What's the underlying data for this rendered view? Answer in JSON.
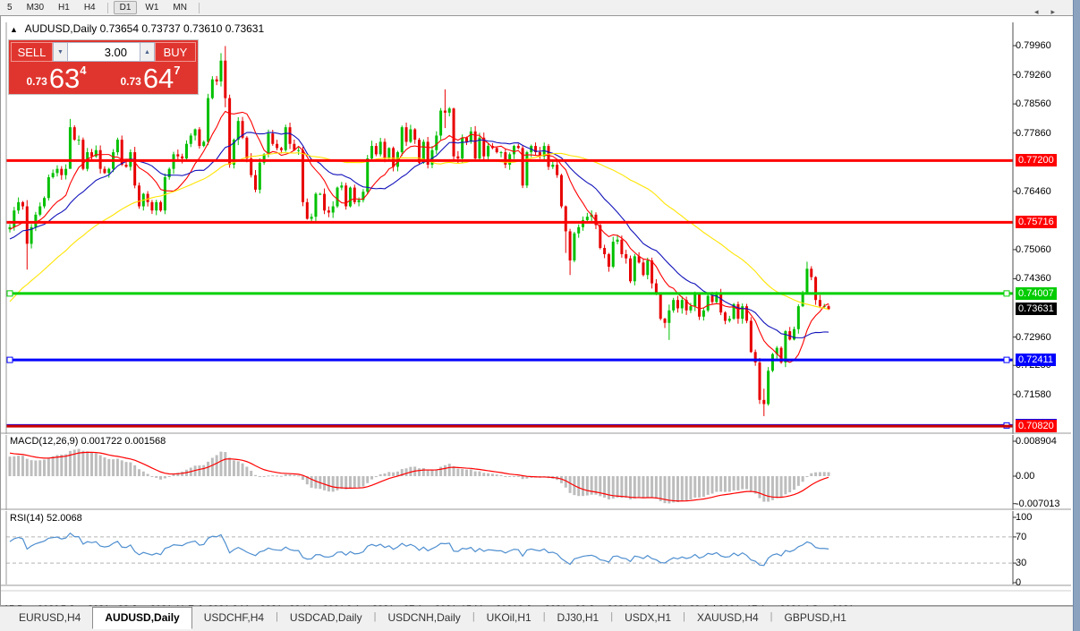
{
  "toolbar": {
    "timeframes": [
      {
        "label": "5",
        "active": false,
        "sep_after": false
      },
      {
        "label": "M30",
        "active": false,
        "sep_after": false
      },
      {
        "label": "H1",
        "active": false,
        "sep_after": false
      },
      {
        "label": "H4",
        "active": false,
        "sep_after": true
      },
      {
        "label": "D1",
        "active": true,
        "sep_after": false
      },
      {
        "label": "W1",
        "active": false,
        "sep_after": false
      },
      {
        "label": "MN",
        "active": false,
        "sep_after": true
      }
    ]
  },
  "chart_header": {
    "collapse_icon": "▲",
    "symbol_title": "AUDUSD,Daily",
    "ohlc_text": "0.73654 0.73737 0.73610 0.73631"
  },
  "trade_panel": {
    "sell_label": "SELL",
    "buy_label": "BUY",
    "volume": "3.00",
    "spinner_down": "▼",
    "spinner_up": "▲",
    "sell_price": {
      "prefix": "0.73",
      "big": "63",
      "sup": "4"
    },
    "buy_price": {
      "prefix": "0.73",
      "big": "64",
      "sup": "7"
    }
  },
  "price_axis": {
    "labels": [
      {
        "text": "0.79960",
        "price": 0.7996,
        "type": "normal"
      },
      {
        "text": "0.79260",
        "price": 0.7926,
        "type": "normal"
      },
      {
        "text": "0.78560",
        "price": 0.7856,
        "type": "normal"
      },
      {
        "text": "0.77860",
        "price": 0.7786,
        "type": "normal"
      },
      {
        "text": "0.77200",
        "price": 0.772,
        "type": "red"
      },
      {
        "text": "0.76460",
        "price": 0.7646,
        "type": "normal"
      },
      {
        "text": "0.75716",
        "price": 0.75716,
        "type": "red"
      },
      {
        "text": "0.75060",
        "price": 0.7506,
        "type": "normal"
      },
      {
        "text": "0.74360",
        "price": 0.7436,
        "type": "normal"
      },
      {
        "text": "0.74007",
        "price": 0.74007,
        "type": "green"
      },
      {
        "text": "0.73631",
        "price": 0.73631,
        "type": "black"
      },
      {
        "text": "0.72960",
        "price": 0.7296,
        "type": "normal"
      },
      {
        "text": "0.72280",
        "price": 0.7228,
        "type": "normal"
      },
      {
        "text": "0.72411",
        "price": 0.72411,
        "type": "blue"
      },
      {
        "text": "0.71580",
        "price": 0.7158,
        "type": "normal"
      },
      {
        "text": "0.70836",
        "price": 0.70836,
        "type": "blue"
      },
      {
        "text": "0.70820",
        "price": 0.7082,
        "type": "red"
      }
    ]
  },
  "indicators": {
    "macd": {
      "header": "MACD(12,26,9) 0.001722 0.001568",
      "params": {
        "fast": 12,
        "slow": 26,
        "signal": 9
      },
      "values": {
        "main": 0.001722,
        "signal": 0.001568
      },
      "axis": [
        {
          "text": "0.008904",
          "v": 0.008904
        },
        {
          "text": "0.00",
          "v": 0
        },
        {
          "text": "-0.007013",
          "v": -0.007013
        }
      ]
    },
    "rsi": {
      "header": "RSI(14) 52.0068",
      "period": 14,
      "value": 52.0068,
      "axis": [
        {
          "text": "100",
          "v": 100
        },
        {
          "text": "70",
          "v": 70
        },
        {
          "text": "30",
          "v": 30
        },
        {
          "text": "0",
          "v": 0
        }
      ],
      "levels": [
        70,
        30
      ]
    }
  },
  "date_axis": {
    "labels": [
      "15 Dec 2020",
      "5 Jan 2021",
      "23 Jan 2021",
      "11 Feb 2021",
      "2 Mar 2021",
      "20 Mar 2021",
      "8 Apr 2021",
      "27 Apr 2021",
      "15 May 2021",
      "3 Jun 2021",
      "22 Jun 2021",
      "10 Jul 2021",
      "29 Jul 2021",
      "17 Aug 2021",
      "4 Sep 2021"
    ]
  },
  "tabs": {
    "items": [
      {
        "label": "EURUSD,H4",
        "active": false
      },
      {
        "label": "AUDUSD,Daily",
        "active": true
      },
      {
        "label": "USDCHF,H4",
        "active": false
      },
      {
        "label": "USDCAD,Daily",
        "active": false
      },
      {
        "label": "USDCNH,Daily",
        "active": false
      },
      {
        "label": "UKOil,H1",
        "active": false
      },
      {
        "label": "DJ30,H1",
        "active": false
      },
      {
        "label": "USDX,H1",
        "active": false
      },
      {
        "label": "XAUUSD,H4",
        "active": false
      },
      {
        "label": "GBPUSD,H1",
        "active": false
      }
    ],
    "nav_prev": "◂",
    "nav_next": "▸"
  },
  "chart_data": {
    "type": "candlestick",
    "symbol": "AUDUSD",
    "timeframe": "Daily",
    "current": {
      "open": 0.73654,
      "high": 0.73737,
      "low": 0.7361,
      "close": 0.73631
    },
    "warmup_count": 50,
    "noise_seed": 11,
    "closes_pips": [
      7030,
      7060,
      7045,
      7080,
      7120,
      7100,
      7150,
      7180,
      7160,
      7200,
      7230,
      7210,
      7260,
      7290,
      7270,
      7310,
      7340,
      7320,
      7290,
      7330,
      7360,
      7380,
      7360,
      7400,
      7430,
      7410,
      7380,
      7420,
      7450,
      7430,
      7470,
      7500,
      7480,
      7455,
      7490,
      7520,
      7500,
      7530,
      7560,
      7540,
      7510,
      7545,
      7570,
      7550,
      7530,
      7555,
      7575,
      7560,
      7545,
      7555,
      7560,
      7600,
      7620,
      7610,
      7520,
      7560,
      7590,
      7610,
      7630,
      7680,
      7690,
      7700,
      7685,
      7700,
      7800,
      7770,
      7770,
      7700,
      7740,
      7730,
      7745,
      7700,
      7690,
      7700,
      7740,
      7770,
      7710,
      7705,
      7740,
      7660,
      7610,
      7640,
      7620,
      7600,
      7620,
      7600,
      7680,
      7700,
      7735,
      7730,
      7725,
      7760,
      7780,
      7795,
      7755,
      7765,
      7870,
      7915,
      7910,
      7960,
      7870,
      7710,
      7770,
      7815,
      7775,
      7725,
      7685,
      7650,
      7715,
      7735,
      7785,
      7760,
      7750,
      7745,
      7800,
      7760,
      7745,
      7745,
      7620,
      7580,
      7585,
      7640,
      7640,
      7600,
      7595,
      7610,
      7655,
      7660,
      7610,
      7655,
      7620,
      7625,
      7645,
      7725,
      7755,
      7735,
      7765,
      7725,
      7750,
      7705,
      7740,
      7800,
      7765,
      7795,
      7770,
      7715,
      7765,
      7710,
      7745,
      7780,
      7840,
      7835,
      7845,
      7730,
      7725,
      7775,
      7765,
      7790,
      7725,
      7775,
      7730,
      7755,
      7750,
      7740,
      7740,
      7710,
      7735,
      7755,
      7750,
      7660,
      7740,
      7755,
      7740,
      7730,
      7755,
      7705,
      7710,
      7685,
      7610,
      7550,
      7480,
      7545,
      7560,
      7577,
      7585,
      7590,
      7565,
      7510,
      7495,
      7465,
      7525,
      7530,
      7495,
      7485,
      7430,
      7490,
      7475,
      7445,
      7480,
      7425,
      7400,
      7340,
      7330,
      7360,
      7385,
      7365,
      7385,
      7360,
      7370,
      7400,
      7345,
      7360,
      7395,
      7380,
      7400,
      7355,
      7335,
      7340,
      7375,
      7340,
      7370,
      7335,
      7260,
      7235,
      7145,
      7135,
      7215,
      7255,
      7270,
      7235,
      7310,
      7290,
      7315,
      7370,
      7400,
      7460,
      7440,
      7385,
      7370,
      7370,
      7363
    ],
    "wick_overrides": {
      "54": [
        7625,
        7458
      ],
      "64": [
        7820,
        7760
      ],
      "99": [
        7978,
        7898
      ],
      "100": [
        7995,
        7848
      ],
      "151": [
        7891,
        7798
      ],
      "179": [
        7612,
        7498
      ],
      "180": [
        7556,
        7445
      ],
      "203": [
        7374,
        7289
      ],
      "225": [
        7172,
        7106
      ],
      "235": [
        7477,
        7408
      ],
      "240": [
        7374,
        7361
      ]
    },
    "colors": {
      "bull": "#00c000",
      "bear": "#e80000",
      "macd_hist": "#bdbdbd",
      "macd_signal": "#ff0000",
      "rsi_line": "#4f8fd0"
    },
    "moving_averages": [
      {
        "period": 10,
        "color": "#ff0000"
      },
      {
        "period": 20,
        "color": "#1313bb"
      },
      {
        "period": 50,
        "color": "#ffe400"
      }
    ],
    "hlines": [
      {
        "price": 0.772,
        "color": "#ff0000",
        "width": 3,
        "handles": []
      },
      {
        "price": 0.75716,
        "color": "#ff0000",
        "width": 3,
        "handles": []
      },
      {
        "price": 0.74007,
        "color": "#00d000",
        "width": 3,
        "handles": [
          "left",
          "right"
        ]
      },
      {
        "price": 0.72411,
        "color": "#0000ff",
        "width": 3,
        "handles": [
          "left",
          "right"
        ]
      },
      {
        "price": 0.70836,
        "color": "#0000ff",
        "width": 3,
        "handles": [
          "right"
        ]
      },
      {
        "price": 0.7082,
        "color": "#cc0000",
        "width": 3,
        "handles": []
      }
    ]
  }
}
